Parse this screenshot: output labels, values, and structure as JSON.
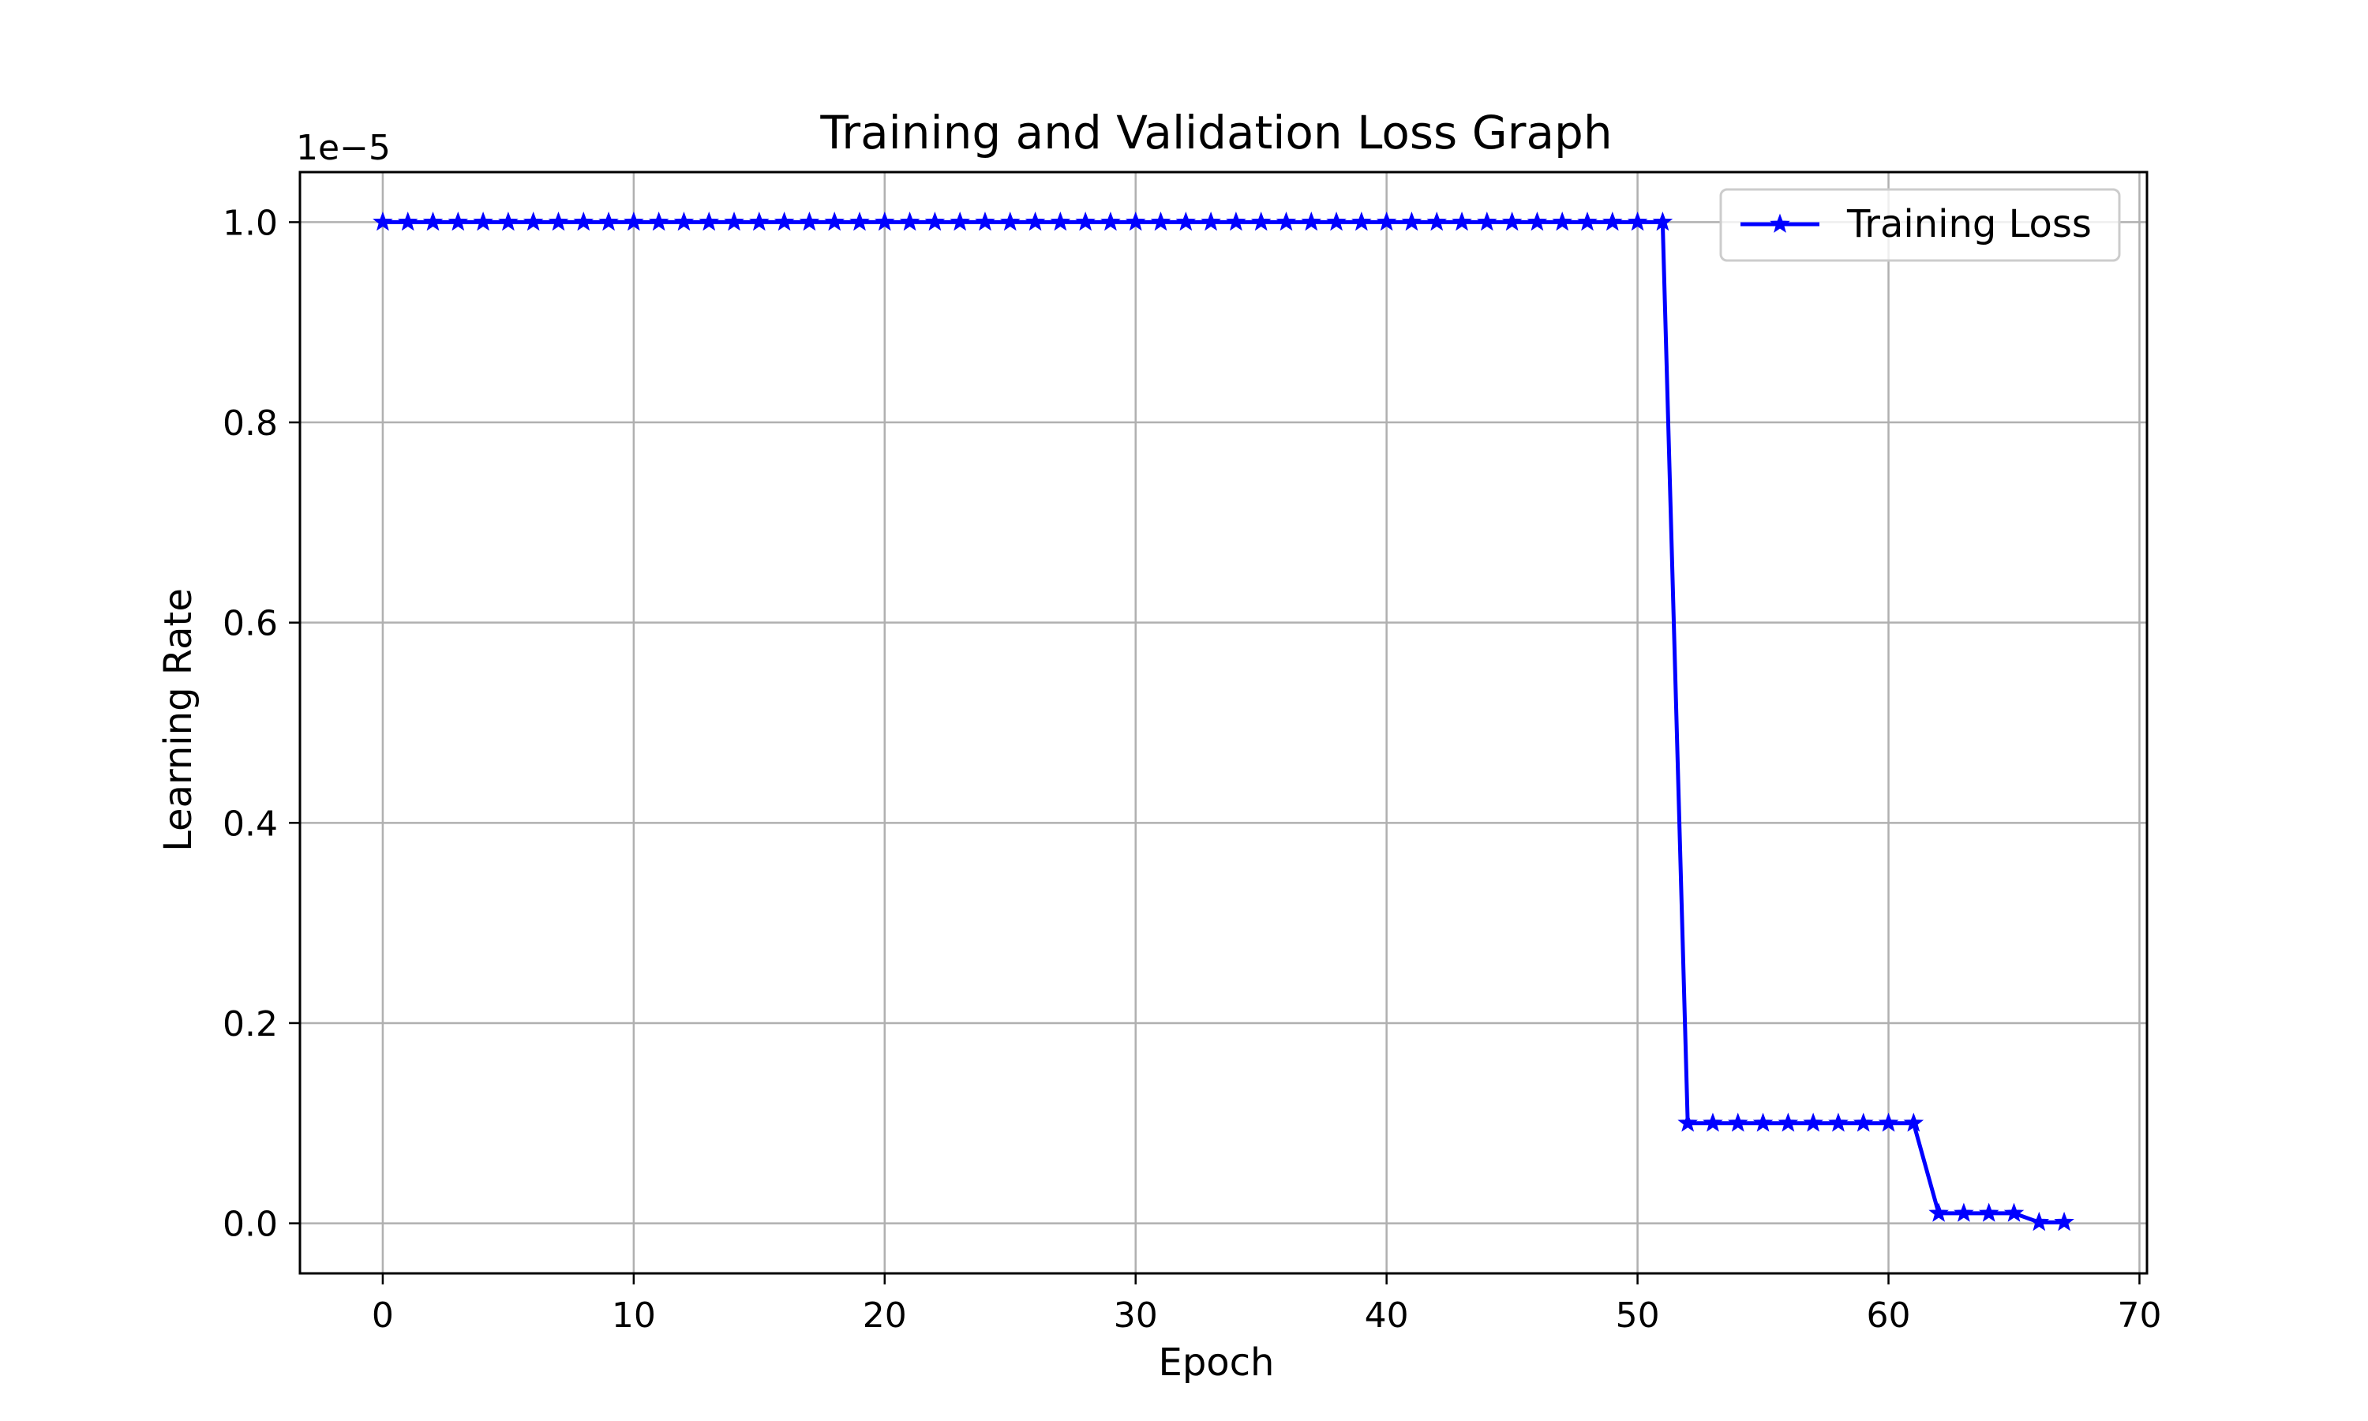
{
  "chart_data": {
    "type": "line",
    "title": "Training and Validation Loss Graph",
    "xlabel": "Epoch",
    "ylabel": "Learning Rate",
    "y_offset_label": "1e−5",
    "y_scale": 1e-05,
    "xlim": [
      -3.3,
      70.3
    ],
    "ylim": [
      -5e-07,
      1.05e-05
    ],
    "x_ticks": [
      0,
      10,
      20,
      30,
      40,
      50,
      60,
      70
    ],
    "x_tick_labels": [
      "0",
      "10",
      "20",
      "30",
      "40",
      "50",
      "60",
      "70"
    ],
    "y_ticks": [
      0,
      2e-06,
      4e-06,
      6e-06,
      8e-06,
      1e-05
    ],
    "y_tick_labels": [
      "0.0",
      "0.2",
      "0.4",
      "0.6",
      "0.8",
      "1.0"
    ],
    "grid": true,
    "legend_position": "top-right",
    "series": [
      {
        "name": "Training Loss",
        "color": "#0000ff",
        "marker": "star",
        "x": [
          0,
          1,
          2,
          3,
          4,
          5,
          6,
          7,
          8,
          9,
          10,
          11,
          12,
          13,
          14,
          15,
          16,
          17,
          18,
          19,
          20,
          21,
          22,
          23,
          24,
          25,
          26,
          27,
          28,
          29,
          30,
          31,
          32,
          33,
          34,
          35,
          36,
          37,
          38,
          39,
          40,
          41,
          42,
          43,
          44,
          45,
          46,
          47,
          48,
          49,
          50,
          51,
          52,
          53,
          54,
          55,
          56,
          57,
          58,
          59,
          60,
          61,
          62,
          63,
          64,
          65,
          66,
          67
        ],
        "y": [
          1e-05,
          1e-05,
          1e-05,
          1e-05,
          1e-05,
          1e-05,
          1e-05,
          1e-05,
          1e-05,
          1e-05,
          1e-05,
          1e-05,
          1e-05,
          1e-05,
          1e-05,
          1e-05,
          1e-05,
          1e-05,
          1e-05,
          1e-05,
          1e-05,
          1e-05,
          1e-05,
          1e-05,
          1e-05,
          1e-05,
          1e-05,
          1e-05,
          1e-05,
          1e-05,
          1e-05,
          1e-05,
          1e-05,
          1e-05,
          1e-05,
          1e-05,
          1e-05,
          1e-05,
          1e-05,
          1e-05,
          1e-05,
          1e-05,
          1e-05,
          1e-05,
          1e-05,
          1e-05,
          1e-05,
          1e-05,
          1e-05,
          1e-05,
          1e-05,
          1e-05,
          1e-06,
          1e-06,
          1e-06,
          1e-06,
          1e-06,
          1e-06,
          1e-06,
          1e-06,
          1e-06,
          1e-06,
          1e-07,
          1e-07,
          1e-07,
          1e-07,
          1e-08,
          1e-08
        ]
      }
    ]
  }
}
